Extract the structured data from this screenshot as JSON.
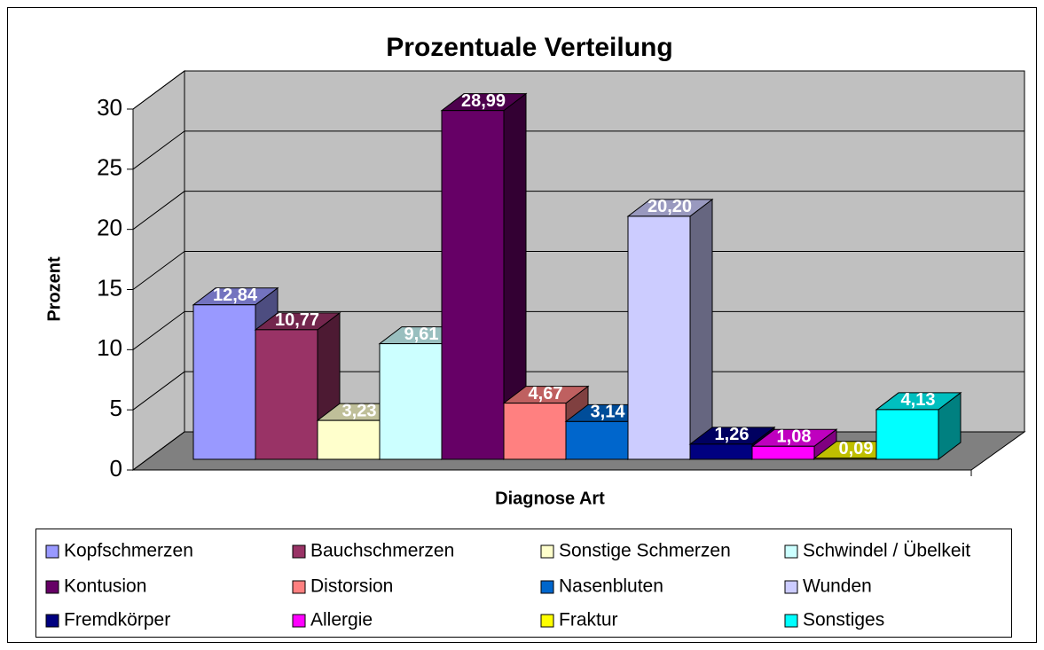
{
  "chart_data": {
    "type": "bar",
    "title": "Prozentuale Verteilung",
    "xlabel": "Diagnose Art",
    "ylabel": "Prozent",
    "ylim": [
      0,
      30
    ],
    "yticks": [
      0,
      5,
      10,
      15,
      20,
      25,
      30
    ],
    "grid": true,
    "series": [
      {
        "name": "Kopfschmerzen",
        "color": "#9999ff",
        "values": [
          12.84
        ],
        "value_labels": [
          "12,84"
        ]
      },
      {
        "name": "Bauchschmerzen",
        "color": "#993366",
        "values": [
          10.77
        ],
        "value_labels": [
          "10,77"
        ]
      },
      {
        "name": "Sonstige Schmerzen",
        "color": "#ffffcc",
        "values": [
          3.23
        ],
        "value_labels": [
          "3,23"
        ]
      },
      {
        "name": "Schwindel / Übelkeit",
        "color": "#ccffff",
        "values": [
          9.61
        ],
        "value_labels": [
          "9,61"
        ]
      },
      {
        "name": "Kontusion",
        "color": "#660066",
        "values": [
          28.99
        ],
        "value_labels": [
          "28,99"
        ]
      },
      {
        "name": "Distorsion",
        "color": "#ff8080",
        "values": [
          4.67
        ],
        "value_labels": [
          "4,67"
        ]
      },
      {
        "name": "Nasenbluten",
        "color": "#0066cc",
        "values": [
          3.14
        ],
        "value_labels": [
          "3,14"
        ]
      },
      {
        "name": "Wunden",
        "color": "#ccccff",
        "values": [
          20.2
        ],
        "value_labels": [
          "20,20"
        ]
      },
      {
        "name": "Fremdkörper",
        "color": "#000080",
        "values": [
          1.26
        ],
        "value_labels": [
          "1,26"
        ]
      },
      {
        "name": "Allergie",
        "color": "#ff00ff",
        "values": [
          1.08
        ],
        "value_labels": [
          "1,08"
        ]
      },
      {
        "name": "Fraktur",
        "color": "#ffff00",
        "values": [
          0.09
        ],
        "value_labels": [
          "0,09"
        ]
      },
      {
        "name": "Sonstiges",
        "color": "#00ffff",
        "values": [
          4.13
        ],
        "value_labels": [
          "4,13"
        ]
      }
    ]
  }
}
